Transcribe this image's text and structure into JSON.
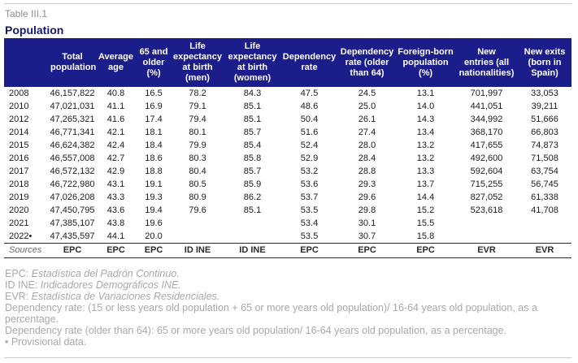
{
  "table_number": "Table III.1",
  "title": "Population",
  "columns": [
    "",
    "Total\npopulation",
    "Average\nage",
    "65 and\nolder\n(%)",
    "Life\nexpectancy\nat birth\n(men)",
    "Life\nexpectancy\nat birth\n(women)",
    "Dependency\nrate",
    "Dependency\nrate (older\nthan 64)",
    "Foreign-born\npopulation\n(%)",
    "New\nentries (all\nnationalities)",
    "New exits\n(born in\nSpain)"
  ],
  "rows": [
    [
      "2008",
      "46,157,822",
      "40.8",
      "16.5",
      "78.2",
      "84.3",
      "47.5",
      "24.5",
      "13.1",
      "701,997",
      "33,053"
    ],
    [
      "2010",
      "47,021,031",
      "41.1",
      "16.9",
      "79.1",
      "85.1",
      "48.6",
      "25.0",
      "14.0",
      "441,051",
      "39,211"
    ],
    [
      "2012",
      "47,265,321",
      "41.6",
      "17.4",
      "79.4",
      "85.1",
      "50.4",
      "26.1",
      "14.3",
      "344,992",
      "51,666"
    ],
    [
      "2014",
      "46,771,341",
      "42.1",
      "18.1",
      "80.1",
      "85.7",
      "51.6",
      "27.4",
      "13.4",
      "368,170",
      "66,803"
    ],
    [
      "2015",
      "46,624,382",
      "42.4",
      "18.4",
      "79.9",
      "85.4",
      "52.4",
      "28.0",
      "13.2",
      "417,655",
      "74,873"
    ],
    [
      "2016",
      "46,557,008",
      "42.7",
      "18.6",
      "80.3",
      "85.8",
      "52.9",
      "28.4",
      "13.2",
      "492,600",
      "71,508"
    ],
    [
      "2017",
      "46,572,132",
      "42.9",
      "18.8",
      "80.4",
      "85.7",
      "53.2",
      "28.8",
      "13.3",
      "592,604",
      "63,754"
    ],
    [
      "2018",
      "46,722,980",
      "43.1",
      "19.1",
      "80.5",
      "85.9",
      "53.6",
      "29.3",
      "13.7",
      "715,255",
      "56,745"
    ],
    [
      "2019",
      "47,026,208",
      "43.3",
      "19.3",
      "80.9",
      "86.2",
      "53.7",
      "29.6",
      "14.4",
      "827,052",
      "61,338"
    ],
    [
      "2020",
      "47,450,795",
      "43.6",
      "19.4",
      "79.6",
      "85.1",
      "53.5",
      "29.8",
      "15.2",
      "523,618",
      "41,708"
    ],
    [
      "2021",
      "47,385,107",
      "43.8",
      "19.6",
      "",
      "",
      "53.4",
      "30.1",
      "15.5",
      "",
      ""
    ],
    [
      "2022•",
      "47,435,597",
      "44.1",
      "20.0",
      "",
      "",
      "53.5",
      "30.7",
      "15.8",
      "",
      ""
    ]
  ],
  "sources": [
    "Sources",
    "EPC",
    "EPC",
    "EPC",
    "ID INE",
    "ID INE",
    "EPC",
    "EPC",
    "EPC",
    "EVR",
    "EVR"
  ],
  "notes": {
    "epc_abbr": "EPC: ",
    "epc_full": "Estadística del Padrón Continuo.",
    "idine_abbr": "ID INE: ",
    "idine_full": "Indicadores Demográficos INE.",
    "evr_abbr": "EVR: ",
    "evr_full": "Estadística de Variaciones Residenciales.",
    "dependency": "Dependency rate: (15 or less years old population + 65 or more years old population)/ 16-64 years old population, as a percentage.",
    "dependency_older": "Dependency rate (older than 64): 65 or more years old population/ 16-64 years old population, as a percentage.",
    "provisional": "• Provisional data."
  }
}
